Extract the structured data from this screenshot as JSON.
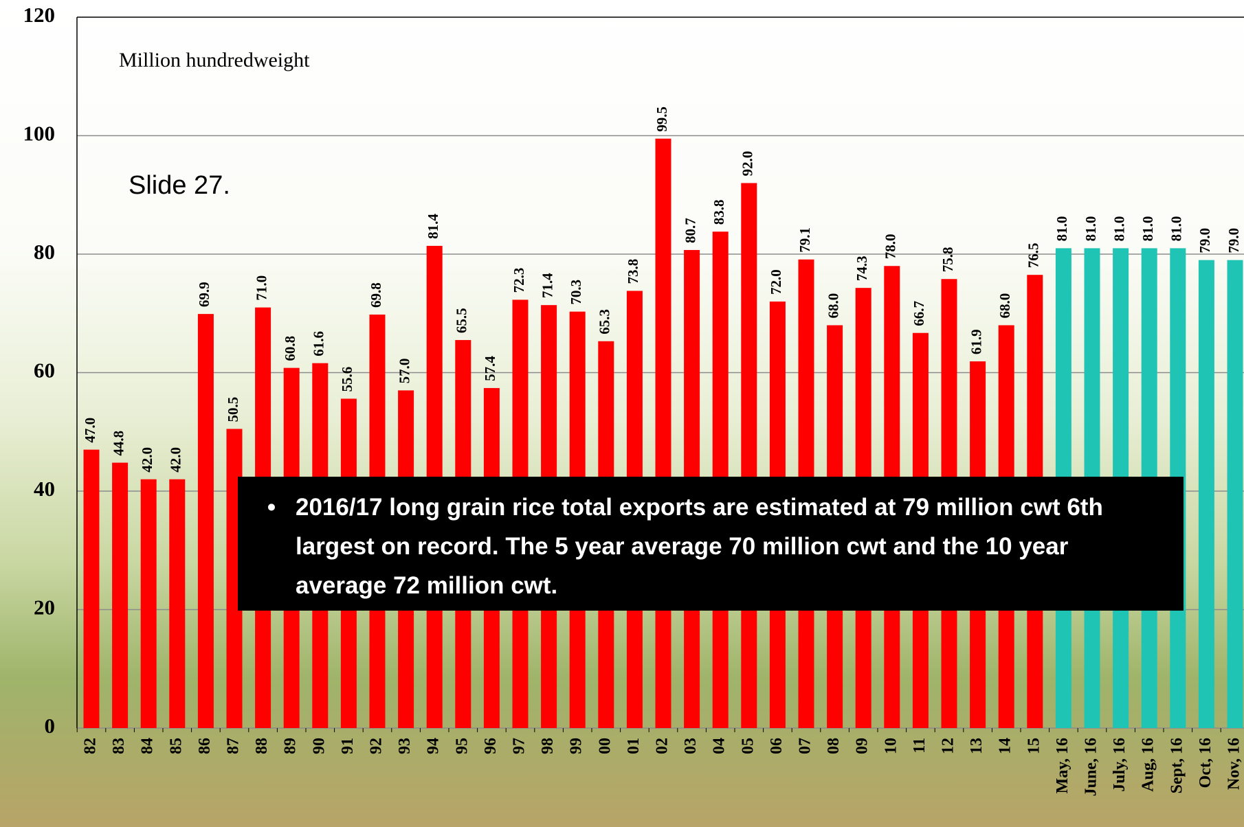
{
  "chart_data": {
    "type": "bar",
    "unit_label": "Million hundredweight",
    "slide_label": "Slide 27.",
    "annotation": "2016/17 long grain rice total exports are estimated at 79 million cwt 6th largest on record. The 5 year average 70 million cwt and the 10 year average 72 million cwt.",
    "categories": [
      "82",
      "83",
      "84",
      "85",
      "86",
      "87",
      "88",
      "89",
      "90",
      "91",
      "92",
      "93",
      "94",
      "95",
      "96",
      "97",
      "98",
      "99",
      "00",
      "01",
      "02",
      "03",
      "04",
      "05",
      "06",
      "07",
      "08",
      "09",
      "10",
      "11",
      "12",
      "13",
      "14",
      "15",
      "May, 16",
      "June, 16",
      "July, 16",
      "Aug, 16",
      "Sept, 16",
      "Oct, 16",
      "Nov, 16"
    ],
    "values": [
      47.0,
      44.8,
      42.0,
      42.0,
      69.9,
      50.5,
      71.0,
      60.8,
      61.6,
      55.6,
      69.8,
      57.0,
      81.4,
      65.5,
      57.4,
      72.3,
      71.4,
      70.3,
      65.3,
      73.8,
      99.5,
      80.7,
      83.8,
      92.0,
      72.0,
      79.1,
      68.0,
      74.3,
      78.0,
      66.7,
      75.8,
      61.9,
      68.0,
      76.5,
      81.0,
      81.0,
      81.0,
      81.0,
      81.0,
      79.0,
      79.0
    ],
    "value_labels": [
      "47.0",
      "44.8",
      "42.0",
      "42.0",
      "69.9",
      "50.5",
      "71.0",
      "60.8",
      "61.6",
      "55.6",
      "69.8",
      "57.0",
      "81.4",
      "65.5",
      "57.4",
      "72.3",
      "71.4",
      "70.3",
      "65.3",
      "73.8",
      "99.5",
      "80.7",
      "83.8",
      "92.0",
      "72.0",
      "79.1",
      "68.0",
      "74.3",
      "78.0",
      "66.7",
      "75.8",
      "61.9",
      "68.0",
      "76.5",
      "81.0",
      "81.0",
      "81.0",
      "81.0",
      "81.0",
      "79.0",
      "79.0"
    ],
    "colors": [
      "#ff0000",
      "#ff0000",
      "#ff0000",
      "#ff0000",
      "#ff0000",
      "#ff0000",
      "#ff0000",
      "#ff0000",
      "#ff0000",
      "#ff0000",
      "#ff0000",
      "#ff0000",
      "#ff0000",
      "#ff0000",
      "#ff0000",
      "#ff0000",
      "#ff0000",
      "#ff0000",
      "#ff0000",
      "#ff0000",
      "#ff0000",
      "#ff0000",
      "#ff0000",
      "#ff0000",
      "#ff0000",
      "#ff0000",
      "#ff0000",
      "#ff0000",
      "#ff0000",
      "#ff0000",
      "#ff0000",
      "#ff0000",
      "#ff0000",
      "#ff0000",
      "#1fc4b4",
      "#1fc4b4",
      "#1fc4b4",
      "#1fc4b4",
      "#1fc4b4",
      "#1fc4b4",
      "#1fc4b4"
    ],
    "ylim": [
      0,
      120
    ],
    "yticks": [
      0,
      20,
      40,
      60,
      80,
      100,
      120
    ],
    "grid": true
  }
}
